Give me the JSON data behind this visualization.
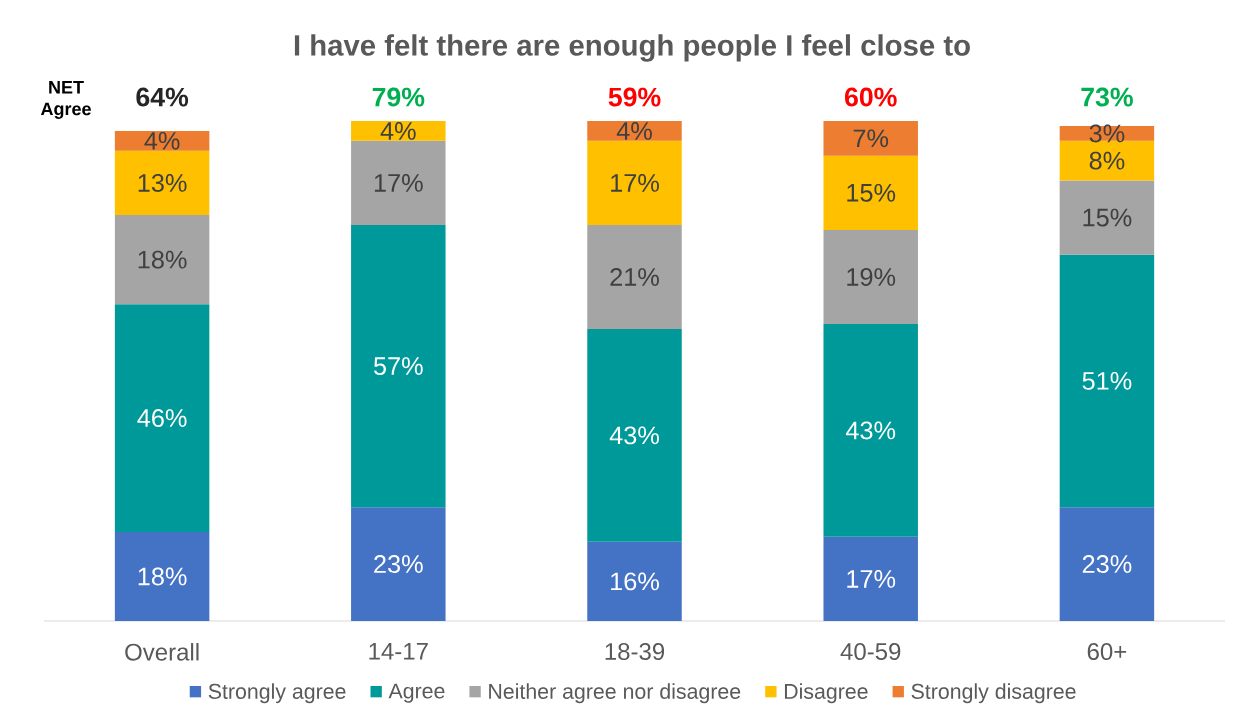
{
  "chart_data": {
    "type": "bar",
    "title": "I have felt there are enough people I feel close to",
    "categories": [
      "Overall",
      "14-17",
      "18-39",
      "40-59",
      "60+"
    ],
    "series": [
      {
        "name": "Strongly agree",
        "color": "#4472c4",
        "values": [
          18,
          23,
          16,
          17,
          23
        ],
        "value_labels": [
          "18%",
          "23%",
          "16%",
          "17%",
          "23%"
        ]
      },
      {
        "name": "Agree",
        "color": "#009999",
        "values": [
          46,
          57,
          43,
          43,
          51
        ],
        "value_labels": [
          "46%",
          "57%",
          "43%",
          "43%",
          "51%"
        ]
      },
      {
        "name": "Neither agree nor disagree",
        "color": "#a5a5a5",
        "values": [
          18,
          17,
          21,
          19,
          15
        ],
        "value_labels": [
          "18%",
          "17%",
          "21%",
          "19%",
          "15%"
        ]
      },
      {
        "name": "Disagree",
        "color": "#ffc000",
        "values": [
          13,
          4,
          17,
          15,
          8
        ],
        "value_labels": [
          "13%",
          "4%",
          "17%",
          "15%",
          "8%"
        ]
      },
      {
        "name": "Strongly disagree",
        "color": "#ed7d31",
        "values": [
          4,
          null,
          4,
          7,
          3
        ],
        "value_labels": [
          "4%",
          null,
          "4%",
          "7%",
          "3%"
        ]
      }
    ],
    "stacked": true,
    "tick_labels": "x",
    "legend": "bottom",
    "annotations": [
      "NET Agree",
      "64%",
      "79%",
      "59%",
      "60%",
      "73%"
    ]
  }
}
